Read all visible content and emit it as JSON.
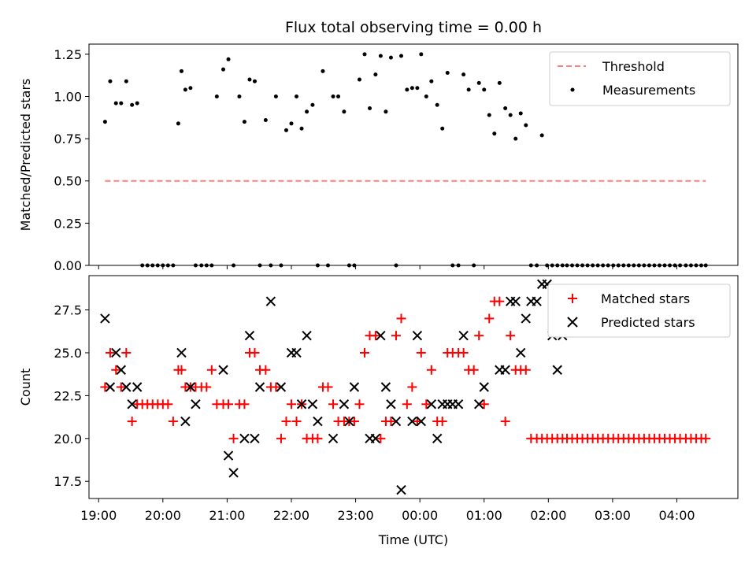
{
  "chart_data": [
    {
      "type": "scatter",
      "title": "Flux total observing time = 0.00 h",
      "ylabel": "Matched/Predicted stars",
      "xlabel": "",
      "xlim": [
        18.85,
        28.95
      ],
      "ylim": [
        0,
        1.31
      ],
      "yticks": [
        0.0,
        0.25,
        0.5,
        0.75,
        1.0,
        1.25
      ],
      "ytick_labels": [
        "0.00",
        "0.25",
        "0.50",
        "0.75",
        "1.00",
        "1.25"
      ],
      "show_xtick_labels": false,
      "grid": false,
      "legend_position": "top-right",
      "series": [
        {
          "name": "Threshold",
          "type": "line",
          "style": "dashed",
          "color": "#ff7f7f",
          "x": [
            19.1,
            28.45
          ],
          "y": [
            0.5,
            0.5
          ]
        },
        {
          "name": "Measurements",
          "type": "scatter",
          "marker": "dot",
          "color": "#000000",
          "x": [
            19.1,
            19.18,
            19.27,
            19.35,
            19.43,
            19.52,
            19.6,
            19.68,
            19.76,
            19.84,
            19.92,
            20.0,
            20.08,
            20.16,
            20.24,
            20.29,
            20.35,
            20.43,
            20.51,
            20.6,
            20.68,
            20.76,
            20.84,
            20.94,
            21.02,
            21.1,
            21.19,
            21.27,
            21.35,
            21.43,
            21.51,
            21.6,
            21.68,
            21.76,
            21.84,
            21.92,
            22.0,
            22.08,
            22.16,
            22.24,
            22.33,
            22.41,
            22.49,
            22.57,
            22.65,
            22.73,
            22.82,
            22.9,
            22.98,
            23.06,
            23.14,
            23.22,
            23.31,
            23.39,
            23.47,
            23.55,
            23.63,
            23.71,
            23.8,
            23.88,
            23.96,
            24.02,
            24.1,
            24.18,
            24.27,
            24.35,
            24.43,
            24.51,
            24.6,
            24.68,
            24.76,
            24.84,
            24.92,
            25.0,
            25.08,
            25.16,
            25.24,
            25.33,
            25.41,
            25.49,
            25.57,
            25.65,
            25.73,
            25.82,
            25.9,
            25.98,
            26.06,
            26.14,
            26.22,
            26.29,
            26.37,
            26.45,
            26.53,
            26.61,
            26.69,
            26.77,
            26.85,
            26.93,
            27.01,
            27.09,
            27.17,
            27.25,
            27.33,
            27.41,
            27.49,
            27.57,
            27.65,
            27.73,
            27.81,
            27.89,
            27.97,
            28.05,
            28.14,
            28.22,
            28.3,
            28.38,
            28.45
          ],
          "y": [
            0.85,
            1.09,
            0.96,
            0.96,
            1.09,
            0.95,
            0.96,
            0.0,
            0.0,
            0.0,
            0.0,
            0.0,
            0.0,
            0.0,
            0.84,
            1.15,
            1.04,
            1.05,
            0.0,
            0.0,
            0.0,
            0.0,
            1.0,
            1.16,
            1.22,
            0.0,
            1.0,
            0.85,
            1.1,
            1.09,
            0.0,
            0.86,
            0.0,
            1.0,
            0.0,
            0.8,
            0.84,
            1.0,
            0.81,
            0.91,
            0.95,
            0.0,
            1.15,
            0.0,
            1.0,
            1.0,
            0.91,
            0.0,
            0.0,
            1.1,
            1.25,
            0.93,
            1.13,
            1.24,
            0.91,
            1.23,
            0.0,
            1.24,
            1.04,
            1.05,
            1.05,
            1.25,
            1.0,
            1.09,
            0.95,
            0.81,
            1.14,
            0.0,
            0.0,
            1.13,
            1.04,
            0.0,
            1.08,
            1.04,
            0.89,
            0.78,
            1.08,
            0.93,
            0.89,
            0.75,
            0.9,
            0.83,
            0.0,
            0.0,
            0.77,
            0.0,
            0.0,
            0.0,
            0.0,
            0.0,
            0.0,
            0.0,
            0.0,
            0.0,
            0.0,
            0.0,
            0.0,
            0.0,
            0.0,
            0.0,
            0.0,
            0.0,
            0.0,
            0.0,
            0.0,
            0.0,
            0.0,
            0.0,
            0.0,
            0.0,
            0.0,
            0.0,
            0.0,
            0.0,
            0.0,
            0.0,
            0.0
          ]
        }
      ]
    },
    {
      "type": "scatter",
      "title": "",
      "ylabel": "Count",
      "xlabel": "Time (UTC)",
      "xlim": [
        18.85,
        28.95
      ],
      "ylim": [
        16.5,
        29.5
      ],
      "yticks": [
        17.5,
        20.0,
        22.5,
        25.0,
        27.5
      ],
      "ytick_labels": [
        "17.5",
        "20.0",
        "22.5",
        "25.0",
        "27.5"
      ],
      "xticks": [
        19,
        20,
        21,
        22,
        23,
        24,
        25,
        26,
        27,
        28
      ],
      "xtick_labels": [
        "19:00",
        "20:00",
        "21:00",
        "22:00",
        "23:00",
        "00:00",
        "01:00",
        "02:00",
        "03:00",
        "04:00"
      ],
      "grid": false,
      "legend_position": "top-right",
      "series": [
        {
          "name": "Matched stars",
          "marker": "plus",
          "color": "#ff0000",
          "x": [
            19.1,
            19.18,
            19.27,
            19.35,
            19.43,
            19.52,
            19.6,
            19.68,
            19.76,
            19.84,
            19.92,
            20.0,
            20.08,
            20.16,
            20.24,
            20.29,
            20.35,
            20.43,
            20.51,
            20.6,
            20.68,
            20.76,
            20.84,
            20.94,
            21.02,
            21.1,
            21.19,
            21.27,
            21.35,
            21.43,
            21.51,
            21.6,
            21.68,
            21.76,
            21.84,
            21.92,
            22.0,
            22.08,
            22.16,
            22.24,
            22.33,
            22.41,
            22.49,
            22.57,
            22.65,
            22.73,
            22.82,
            22.9,
            22.98,
            23.06,
            23.14,
            23.22,
            23.31,
            23.39,
            23.47,
            23.55,
            23.63,
            23.71,
            23.8,
            23.88,
            23.96,
            24.02,
            24.1,
            24.18,
            24.27,
            24.35,
            24.43,
            24.51,
            24.6,
            24.68,
            24.76,
            24.84,
            24.92,
            25.0,
            25.08,
            25.16,
            25.24,
            25.33,
            25.41,
            25.49,
            25.57,
            25.65,
            25.73,
            25.82,
            25.9,
            25.98,
            26.06,
            26.14,
            26.22,
            26.29,
            26.37,
            26.45,
            26.53,
            26.61,
            26.69,
            26.77,
            26.85,
            26.93,
            27.01,
            27.09,
            27.17,
            27.25,
            27.33,
            27.41,
            27.49,
            27.57,
            27.65,
            27.73,
            27.81,
            27.89,
            27.97,
            28.05,
            28.14,
            28.22,
            28.3,
            28.38,
            28.45
          ],
          "y": [
            23,
            25,
            24,
            23,
            25,
            21,
            22,
            22,
            22,
            22,
            22,
            22,
            22,
            21,
            24,
            24,
            23,
            23,
            23,
            23,
            23,
            24,
            22,
            22,
            22,
            20,
            22,
            22,
            25,
            25,
            24,
            24,
            23,
            23,
            20,
            21,
            22,
            21,
            22,
            20,
            20,
            20,
            23,
            23,
            22,
            21,
            21,
            21,
            21,
            22,
            25,
            26,
            26,
            20,
            21,
            21,
            26,
            27,
            22,
            23,
            21,
            25,
            22,
            24,
            21,
            21,
            25,
            25,
            25,
            25,
            24,
            24,
            26,
            22,
            27,
            28,
            28,
            21,
            26,
            24,
            24,
            24,
            20,
            20,
            20,
            20,
            20,
            20,
            20,
            20,
            20,
            20,
            20,
            20,
            20,
            20,
            20,
            20,
            20,
            20,
            20,
            20,
            20,
            20,
            20,
            20,
            20,
            20,
            20,
            20,
            20,
            20,
            20,
            20,
            20,
            20,
            20
          ]
        },
        {
          "name": "Predicted stars",
          "marker": "x",
          "color": "#000000",
          "x": [
            19.1,
            19.18,
            19.27,
            19.35,
            19.43,
            19.52,
            19.6,
            20.29,
            20.35,
            20.43,
            20.51,
            20.94,
            21.02,
            21.1,
            21.27,
            21.35,
            21.43,
            21.51,
            21.68,
            21.84,
            22.0,
            22.08,
            22.16,
            22.24,
            22.33,
            22.41,
            22.65,
            22.82,
            22.9,
            22.98,
            23.22,
            23.31,
            23.39,
            23.47,
            23.55,
            23.63,
            23.71,
            23.88,
            23.96,
            24.02,
            24.18,
            24.27,
            24.35,
            24.43,
            24.51,
            24.6,
            24.68,
            24.92,
            25.0,
            25.24,
            25.33,
            25.41,
            25.49,
            25.57,
            25.65,
            25.73,
            25.82,
            25.9,
            25.98,
            26.06,
            26.14,
            26.22
          ],
          "y": [
            27,
            23,
            25,
            24,
            23,
            22,
            23,
            25,
            21,
            23,
            22,
            24,
            19,
            18,
            20,
            26,
            20,
            23,
            28,
            23,
            25,
            25,
            22,
            26,
            22,
            21,
            20,
            22,
            21,
            23,
            20,
            20,
            26,
            23,
            22,
            21,
            17,
            21,
            26,
            21,
            22,
            20,
            22,
            22,
            22,
            22,
            26,
            22,
            23,
            24,
            24,
            28,
            28,
            25,
            27,
            28,
            28,
            29,
            29,
            26,
            24,
            26
          ]
        }
      ]
    }
  ]
}
